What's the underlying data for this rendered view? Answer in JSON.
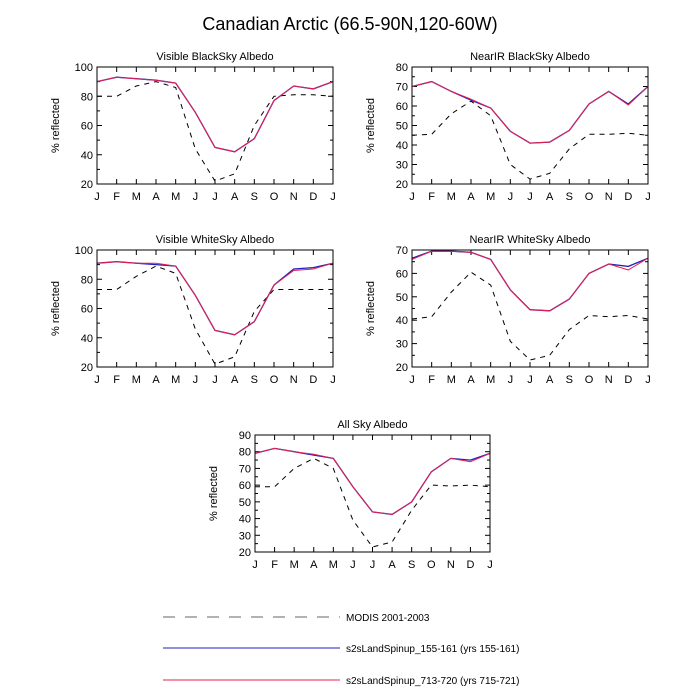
{
  "page": {
    "title": "Canadian Arctic (66.5-90N,120-60W)"
  },
  "legend": [
    {
      "name": "MODIS 2001-2003",
      "color": "#000000",
      "dash": "dashed"
    },
    {
      "name": "s2sLandSpinup_155-161 (yrs 155-161)",
      "color": "#2020c0",
      "dash": "solid"
    },
    {
      "name": "s2sLandSpinup_713-720 (yrs 715-721)",
      "color": "#e8204a",
      "dash": "solid"
    }
  ],
  "chart_data": [
    {
      "type": "line",
      "title": "Visible BlackSky Albedo",
      "xlabel": "",
      "ylabel": "% reflected",
      "categories": [
        "J",
        "F",
        "M",
        "A",
        "M",
        "J",
        "J",
        "A",
        "S",
        "O",
        "N",
        "D",
        "J"
      ],
      "ylim": [
        20,
        100
      ],
      "yticks": [
        20,
        40,
        60,
        80,
        100
      ],
      "series": [
        {
          "name": "MODIS 2001-2003",
          "values": [
            80,
            80,
            87,
            90,
            86,
            44,
            22,
            27,
            60,
            80,
            81,
            81,
            80
          ]
        },
        {
          "name": "s2sLandSpinup_155-161 (yrs 155-161)",
          "values": [
            90,
            93,
            92,
            91,
            89,
            69,
            45,
            42,
            51,
            77,
            87,
            85,
            90
          ]
        },
        {
          "name": "s2sLandSpinup_713-720 (yrs 715-721)",
          "values": [
            90,
            93,
            92,
            91,
            89,
            69,
            45,
            42,
            51,
            77,
            87,
            85,
            90
          ]
        }
      ]
    },
    {
      "type": "line",
      "title": "NearIR BlackSky Albedo",
      "xlabel": "",
      "ylabel": "% reflected",
      "categories": [
        "J",
        "F",
        "M",
        "A",
        "M",
        "J",
        "J",
        "A",
        "S",
        "O",
        "N",
        "D",
        "J"
      ],
      "ylim": [
        20,
        80
      ],
      "yticks": [
        20,
        30,
        40,
        50,
        60,
        70,
        80
      ],
      "series": [
        {
          "name": "MODIS 2001-2003",
          "values": [
            45,
            45.5,
            56,
            62.5,
            55,
            30,
            22.5,
            25.5,
            38,
            45.5,
            45.5,
            46,
            45
          ]
        },
        {
          "name": "s2sLandSpinup_155-161 (yrs 155-161)",
          "values": [
            70,
            72.5,
            67.5,
            63,
            59,
            47,
            41,
            41.5,
            47.5,
            61,
            67.5,
            61,
            70
          ]
        },
        {
          "name": "s2sLandSpinup_713-720 (yrs 715-721)",
          "values": [
            70,
            72.5,
            67.5,
            63.5,
            59,
            47,
            41,
            41.5,
            47.5,
            61,
            67.5,
            60.5,
            70
          ]
        }
      ]
    },
    {
      "type": "line",
      "title": "Visible WhiteSky Albedo",
      "xlabel": "",
      "ylabel": "% reflected",
      "categories": [
        "J",
        "F",
        "M",
        "A",
        "M",
        "J",
        "J",
        "A",
        "S",
        "O",
        "N",
        "D",
        "J"
      ],
      "ylim": [
        20,
        100
      ],
      "yticks": [
        20,
        40,
        60,
        80,
        100
      ],
      "series": [
        {
          "name": "MODIS 2001-2003",
          "values": [
            73,
            73,
            82,
            89,
            84,
            46,
            22,
            27,
            58,
            73,
            73,
            73,
            73
          ]
        },
        {
          "name": "s2sLandSpinup_155-161 (yrs 155-161)",
          "values": [
            91,
            92,
            91,
            90,
            89,
            69,
            45,
            42,
            51,
            76,
            87,
            88,
            91
          ]
        },
        {
          "name": "s2sLandSpinup_713-720 (yrs 715-721)",
          "values": [
            91,
            92,
            91,
            91,
            89,
            69,
            45,
            42,
            51,
            76,
            86,
            87,
            91
          ]
        }
      ]
    },
    {
      "type": "line",
      "title": "NearIR WhiteSky Albedo",
      "xlabel": "",
      "ylabel": "% reflected",
      "categories": [
        "J",
        "F",
        "M",
        "A",
        "M",
        "J",
        "J",
        "A",
        "S",
        "O",
        "N",
        "D",
        "J"
      ],
      "ylim": [
        20,
        70
      ],
      "yticks": [
        20,
        30,
        40,
        50,
        60,
        70
      ],
      "series": [
        {
          "name": "MODIS 2001-2003",
          "values": [
            40.5,
            41.5,
            52,
            60.5,
            55,
            31,
            23,
            25,
            36,
            42,
            41.5,
            42,
            40.5
          ]
        },
        {
          "name": "s2sLandSpinup_155-161 (yrs 155-161)",
          "values": [
            66.5,
            69.5,
            69.5,
            69,
            66,
            53,
            44.5,
            44,
            49,
            60,
            64,
            63,
            66.5
          ]
        },
        {
          "name": "s2sLandSpinup_713-720 (yrs 715-721)",
          "values": [
            66,
            69.5,
            69.5,
            69,
            66,
            53,
            44.5,
            44,
            49,
            60,
            64,
            61.5,
            66.5
          ]
        }
      ]
    },
    {
      "type": "line",
      "title": "All Sky Albedo",
      "xlabel": "",
      "ylabel": "% reflected",
      "categories": [
        "J",
        "F",
        "M",
        "A",
        "M",
        "J",
        "J",
        "A",
        "S",
        "O",
        "N",
        "D",
        "J"
      ],
      "ylim": [
        20,
        90
      ],
      "yticks": [
        20,
        30,
        40,
        50,
        60,
        70,
        80,
        90
      ],
      "series": [
        {
          "name": "MODIS 2001-2003",
          "values": [
            59,
            59,
            70,
            76,
            70,
            39,
            23,
            26,
            45,
            60,
            59.5,
            60,
            59
          ]
        },
        {
          "name": "s2sLandSpinup_155-161 (yrs 155-161)",
          "values": [
            79,
            82,
            80,
            78,
            76,
            59,
            44,
            42.5,
            50,
            68,
            76,
            75,
            79
          ]
        },
        {
          "name": "s2sLandSpinup_713-720 (yrs 715-721)",
          "values": [
            79,
            82,
            80,
            78.5,
            76,
            59,
            44,
            42.5,
            50,
            68,
            76,
            74,
            79
          ]
        }
      ]
    }
  ]
}
